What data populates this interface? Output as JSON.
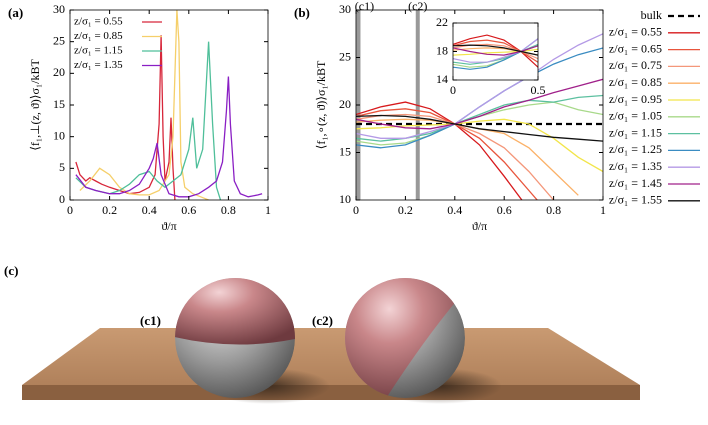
{
  "chart_data": [
    {
      "type": "line",
      "label": "(a)",
      "x_label": "ϑ/π",
      "y_label": "⟨f₁,⊥(z, ϑ)⟩σ₁/kBT",
      "xlim": [
        0,
        1
      ],
      "ylim": [
        0,
        30
      ],
      "xticks": [
        0,
        0.2,
        0.4,
        0.6,
        0.8,
        1
      ],
      "yticks": [
        0,
        5,
        10,
        15,
        20,
        25,
        30
      ],
      "legend": "top-left",
      "series": [
        {
          "name": "z/σ₁ = 0.55",
          "color": "#d7263a",
          "x": [
            0.03,
            0.05,
            0.08,
            0.1,
            0.13,
            0.16,
            0.2,
            0.25,
            0.3,
            0.35,
            0.4,
            0.43,
            0.45,
            0.46,
            0.47,
            0.48,
            0.5,
            0.51,
            0.52,
            0.53
          ],
          "values": [
            6,
            4,
            3,
            3.5,
            3,
            2.5,
            2,
            1.5,
            1,
            1.2,
            2,
            4,
            12,
            26,
            10,
            3,
            6,
            13,
            5,
            0
          ]
        },
        {
          "name": "z/σ₁ = 0.85",
          "color": "#f5cf6a",
          "x": [
            0.05,
            0.1,
            0.15,
            0.2,
            0.25,
            0.3,
            0.35,
            0.4,
            0.45,
            0.5,
            0.52,
            0.54,
            0.55,
            0.56,
            0.58,
            0.62,
            0.66,
            0.7
          ],
          "values": [
            1.5,
            3,
            5,
            4,
            2,
            1,
            0.8,
            0.8,
            1.5,
            4,
            10,
            30,
            25,
            6,
            2,
            1,
            0.5,
            0
          ]
        },
        {
          "name": "z/σ₁ = 1.15",
          "color": "#4fbf9a",
          "x": [
            0.03,
            0.08,
            0.13,
            0.2,
            0.25,
            0.3,
            0.35,
            0.4,
            0.44,
            0.48,
            0.52,
            0.56,
            0.6,
            0.62,
            0.64,
            0.67,
            0.7,
            0.72,
            0.74,
            0.76
          ],
          "values": [
            3.5,
            2,
            1.5,
            1,
            1.5,
            2.5,
            4,
            4.5,
            3,
            2,
            3,
            4,
            8,
            13,
            5,
            8,
            25,
            12,
            2,
            0
          ]
        },
        {
          "name": "z/σ₁ = 1.35",
          "color": "#8a1fc4",
          "x": [
            0.03,
            0.08,
            0.13,
            0.2,
            0.25,
            0.3,
            0.35,
            0.4,
            0.42,
            0.44,
            0.46,
            0.5,
            0.55,
            0.6,
            0.65,
            0.7,
            0.74,
            0.77,
            0.79,
            0.8,
            0.81,
            0.83,
            0.86,
            0.9,
            0.95,
            0.97
          ],
          "values": [
            4,
            2,
            1.5,
            1,
            1,
            1.5,
            2.5,
            5,
            6.5,
            9,
            4,
            1,
            0.5,
            0.5,
            1,
            2,
            3,
            6,
            14,
            19.5,
            12,
            3,
            1,
            0.5,
            0.8,
            1
          ]
        }
      ]
    },
    {
      "type": "line",
      "label": "(b)",
      "x_label": "ϑ/π",
      "y_label": "⟨f₁,∘(z, ϑ)⟩σ₁/kBT",
      "xlim": [
        0,
        1
      ],
      "ylim": [
        10,
        30
      ],
      "xticks": [
        0,
        0.2,
        0.4,
        0.6,
        0.8,
        1
      ],
      "yticks": [
        10,
        15,
        20,
        25,
        30
      ],
      "legend": "outside-right",
      "annotations": [
        {
          "label": "(c1)",
          "x": 0.01
        },
        {
          "label": "(c2)",
          "x": 0.25
        }
      ],
      "x": [
        0,
        0.1,
        0.2,
        0.3,
        0.4,
        0.5,
        0.6,
        0.7,
        0.8,
        0.9,
        1
      ],
      "series": [
        {
          "name": "bulk",
          "color": "#000000",
          "dashed": true,
          "values": [
            18,
            18,
            18,
            18,
            18,
            18,
            18,
            18,
            18,
            18,
            18
          ]
        },
        {
          "name": "z/σ₁ = 0.55",
          "color": "#d7191c",
          "values": [
            19,
            19.8,
            20.3,
            19.6,
            18,
            15.8,
            12.5,
            9,
            null,
            null,
            null
          ]
        },
        {
          "name": "z/σ₁ = 0.65",
          "color": "#e8553c",
          "values": [
            18.8,
            19.4,
            19.6,
            19.2,
            18,
            16.5,
            14,
            11,
            8,
            null,
            null
          ]
        },
        {
          "name": "z/σ₁ = 0.75",
          "color": "#f4977a",
          "values": [
            18.5,
            18.9,
            19,
            18.8,
            18,
            17,
            15.5,
            13,
            10,
            null,
            null
          ]
        },
        {
          "name": "z/σ₁ = 0.85",
          "color": "#fbb168",
          "values": [
            18.2,
            18.4,
            18.5,
            18.4,
            18,
            17.5,
            17,
            15.5,
            13,
            10.5,
            null
          ]
        },
        {
          "name": "z/σ₁ = 0.95",
          "color": "#f2e54a",
          "values": [
            17.5,
            17.6,
            17.8,
            17.9,
            18,
            18.3,
            18.5,
            18,
            16.5,
            14.5,
            13
          ]
        },
        {
          "name": "z/σ₁ = 1.05",
          "color": "#a8d98a",
          "values": [
            16.2,
            15.8,
            16,
            16.8,
            18,
            18.8,
            19.5,
            20,
            20.3,
            19.5,
            19
          ]
        },
        {
          "name": "z/σ₁ = 1.15",
          "color": "#5cc0a0",
          "values": [
            16.5,
            16.2,
            16.5,
            17,
            18,
            19,
            20,
            20.5,
            20.3,
            20.8,
            21
          ]
        },
        {
          "name": "z/σ₁ = 1.25",
          "color": "#3a8cc2",
          "values": [
            15.8,
            15.5,
            15.8,
            16.8,
            18,
            19.8,
            21.5,
            23,
            24.3,
            25.3,
            26
          ]
        },
        {
          "name": "z/σ₁ = 1.35",
          "color": "#b49ae6",
          "values": [
            17,
            16.5,
            16.5,
            17.2,
            18,
            19.8,
            21.5,
            23,
            24.8,
            26.3,
            27.5
          ]
        },
        {
          "name": "z/σ₁ = 1.45",
          "color": "#a0208a",
          "values": [
            18.5,
            18,
            17.6,
            17.5,
            18,
            18.8,
            19.8,
            20.5,
            21.3,
            22,
            22.7
          ]
        },
        {
          "name": "z/σ₁ = 1.55",
          "color": "#111111",
          "values": [
            18.8,
            18.9,
            18.8,
            18.5,
            18,
            17.5,
            17.2,
            16.9,
            16.6,
            16.4,
            16.2
          ]
        }
      ],
      "inset": {
        "xlim": [
          0,
          0.5
        ],
        "ylim": [
          14,
          22
        ],
        "xticks": [
          0,
          0.5
        ],
        "yticks": [
          14,
          18,
          22
        ]
      }
    }
  ],
  "illustration": {
    "label": "(c)",
    "spheres": [
      "(c1)",
      "(c2)"
    ]
  }
}
